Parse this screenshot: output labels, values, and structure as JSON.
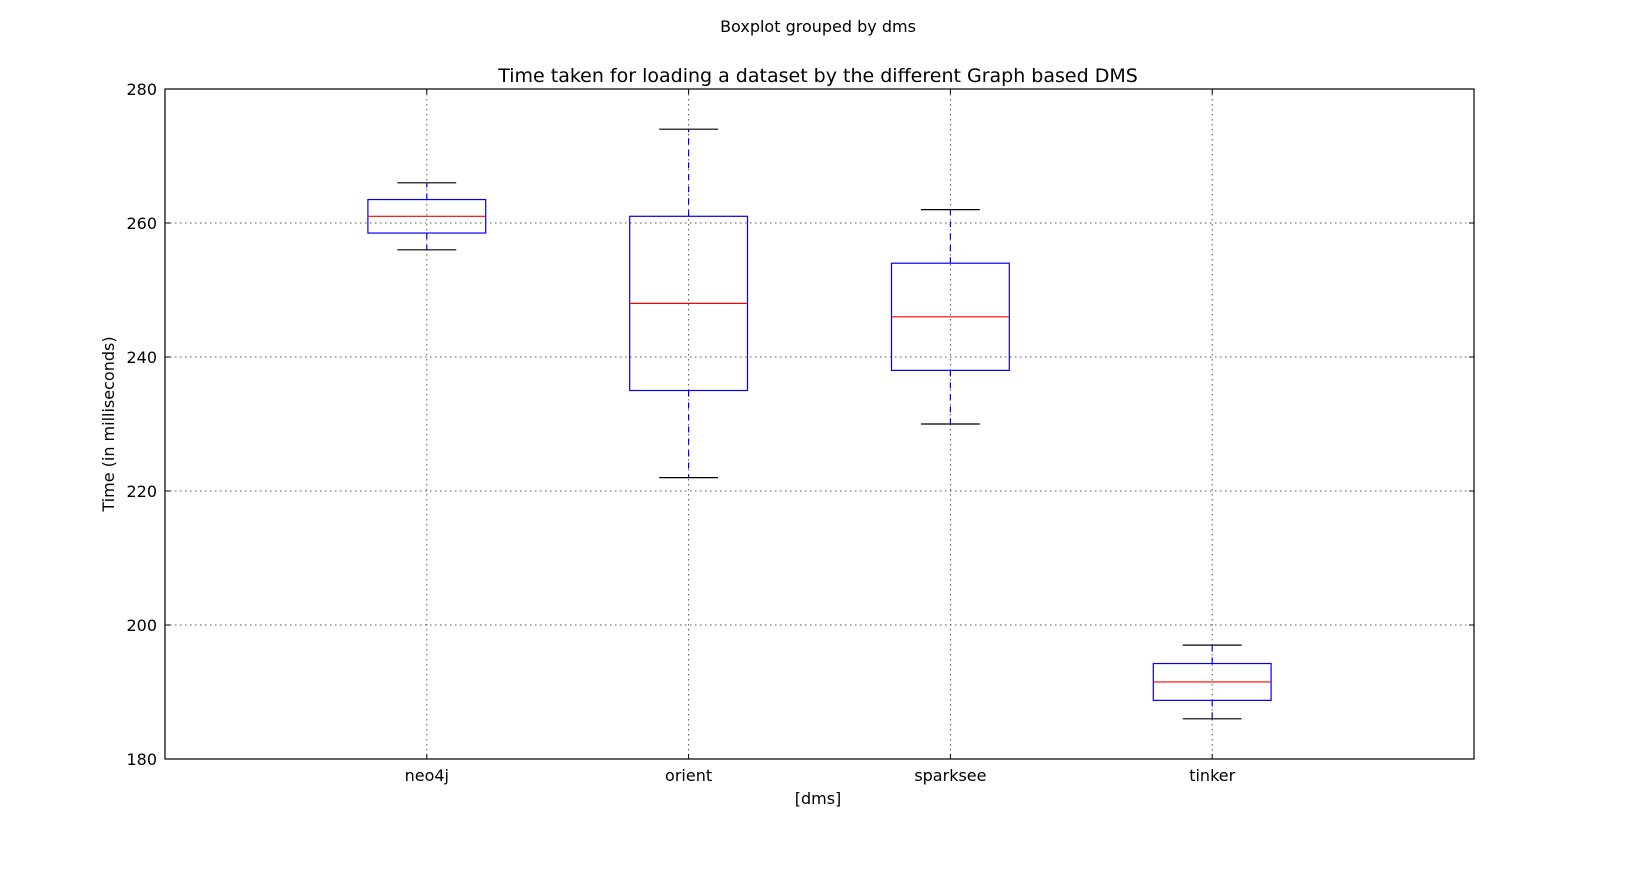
{
  "chart_data": {
    "type": "boxplot",
    "suptitle": "Boxplot grouped by dms",
    "title": "Time taken for loading a dataset by the different Graph based DMS",
    "xlabel": "[dms]",
    "ylabel": "Time (in milliseconds)",
    "ylim": [
      180,
      280
    ],
    "yticks": [
      180,
      200,
      220,
      240,
      260,
      280
    ],
    "grid": true,
    "categories": [
      "neo4j",
      "orient",
      "sparksee",
      "tinker"
    ],
    "boxes": [
      {
        "name": "neo4j",
        "whisker_low": 256,
        "q1": 258.5,
        "median": 261,
        "q3": 263.5,
        "whisker_high": 266
      },
      {
        "name": "orient",
        "whisker_low": 222,
        "q1": 235,
        "median": 248,
        "q3": 261,
        "whisker_high": 274
      },
      {
        "name": "sparksee",
        "whisker_low": 230,
        "q1": 238,
        "median": 246,
        "q3": 254,
        "whisker_high": 262
      },
      {
        "name": "tinker",
        "whisker_low": 186,
        "q1": 188.75,
        "median": 191.5,
        "q3": 194.25,
        "whisker_high": 197
      }
    ],
    "colors": {
      "box": "#0000ff",
      "median": "#ff0000",
      "whisker": "#0000ff",
      "cap": "#000000",
      "grid": "#555555"
    }
  }
}
